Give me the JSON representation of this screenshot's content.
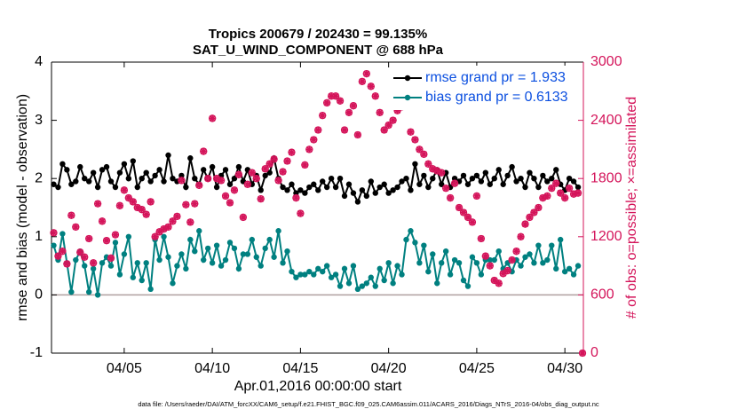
{
  "chart_data": {
    "type": "line",
    "title": "Tropics 200679 / 202430 = 99.135%",
    "subtitle": "SAT_U_WIND_COMPONENT @ 688 hPa",
    "x_label": "Apr.01,2016 00:00:00 start",
    "y_label": "rmse and bias (model - observation)",
    "y2_label": "# of obs: o=possible; ×=assimilated",
    "footnote": "data file: /Users/raeder/DAI/ATM_forcXX/CAM6_setup/f.e21.FHIST_BGC.f09_025.CAM6assim.011/ACARS_2016/Diags_NTrS_2016-04/obs_diag_output.nc",
    "xlim": [
      -0.125,
      30.05
    ],
    "ylim": [
      -1,
      4
    ],
    "y2lim": [
      0,
      3000
    ],
    "xticks": [
      {
        "value": 4,
        "label": "04/05"
      },
      {
        "value": 9,
        "label": "04/10"
      },
      {
        "value": 14,
        "label": "04/15"
      },
      {
        "value": 19,
        "label": "04/20"
      },
      {
        "value": 24,
        "label": "04/25"
      },
      {
        "value": 29,
        "label": "04/30"
      }
    ],
    "yticks": [
      -1,
      0,
      1,
      2,
      3,
      4
    ],
    "y2ticks": [
      0,
      600,
      1200,
      1800,
      2400,
      3000
    ],
    "zero_line_color": "#b0a0a0",
    "y2_color": "#d4145a",
    "legend_position": "upper right",
    "legend_text_color": "#0b4fe0",
    "x": [
      0,
      0.25,
      0.5,
      0.75,
      1,
      1.25,
      1.5,
      1.75,
      2,
      2.25,
      2.5,
      2.75,
      3,
      3.25,
      3.5,
      3.75,
      4,
      4.25,
      4.5,
      4.75,
      5,
      5.25,
      5.5,
      5.75,
      6,
      6.25,
      6.5,
      6.75,
      7,
      7.25,
      7.5,
      7.75,
      8,
      8.25,
      8.5,
      8.75,
      9,
      9.25,
      9.5,
      9.75,
      10,
      10.25,
      10.5,
      10.75,
      11,
      11.25,
      11.5,
      11.75,
      12,
      12.25,
      12.5,
      12.75,
      13,
      13.25,
      13.5,
      13.75,
      14,
      14.25,
      14.5,
      14.75,
      15,
      15.25,
      15.5,
      15.75,
      16,
      16.25,
      16.5,
      16.75,
      17,
      17.25,
      17.5,
      17.75,
      18,
      18.25,
      18.5,
      18.75,
      19,
      19.25,
      19.5,
      19.75,
      20,
      20.25,
      20.5,
      20.75,
      21,
      21.25,
      21.5,
      21.75,
      22,
      22.25,
      22.5,
      22.75,
      23,
      23.25,
      23.5,
      23.75,
      24,
      24.25,
      24.5,
      24.75,
      25,
      25.25,
      25.5,
      25.75,
      26,
      26.25,
      26.5,
      26.75,
      27,
      27.25,
      27.5,
      27.75,
      28,
      28.25,
      28.5,
      28.75,
      29,
      29.25,
      29.5,
      29.75,
      30
    ],
    "series": [
      {
        "name": "rmse grand pr = 1.933",
        "color": "#000000",
        "axis": "y",
        "marker": "dot",
        "line": true,
        "values": [
          1.9,
          1.85,
          2.25,
          2.15,
          1.9,
          1.95,
          2.2,
          2.0,
          1.95,
          2.1,
          1.85,
          2.15,
          2.2,
          1.95,
          1.85,
          2.1,
          2.25,
          2.0,
          2.3,
          1.85,
          2.0,
          2.1,
          1.95,
          2.05,
          2.15,
          1.95,
          2.4,
          2.0,
          1.95,
          2.05,
          1.85,
          2.35,
          2.0,
          1.9,
          2.15,
          2.0,
          2.2,
          1.85,
          2.05,
          2.15,
          1.9,
          2.0,
          2.2,
          1.95,
          2.15,
          1.9,
          2.05,
          1.8,
          2.05,
          2.1,
          2.35,
          2.0,
          1.85,
          1.8,
          1.9,
          1.75,
          1.8,
          1.75,
          1.85,
          1.9,
          1.8,
          1.95,
          1.85,
          2.0,
          1.85,
          2.0,
          1.7,
          1.9,
          1.75,
          1.6,
          1.8,
          1.7,
          1.95,
          1.75,
          1.85,
          1.9,
          1.75,
          1.8,
          1.85,
          1.95,
          2.0,
          1.8,
          2.25,
          1.9,
          2.05,
          1.85,
          2.0,
          2.15,
          1.9,
          2.1,
          1.85,
          2.0,
          1.95,
          2.05,
          1.9,
          2.0,
          2.05,
          1.95,
          2.1,
          1.9,
          2.0,
          2.15,
          1.9,
          2.05,
          2.2,
          1.95,
          2.0,
          1.85,
          2.1,
          2.0,
          1.85,
          2.05,
          1.95,
          2.0,
          2.15,
          1.9,
          1.8,
          2.0,
          1.95,
          1.85,
          null
        ]
      },
      {
        "name": "bias grand pr = 0.6133",
        "color": "#008080",
        "axis": "y",
        "marker": "dot",
        "line": true,
        "values": [
          0.85,
          0.6,
          1.05,
          0.55,
          0.05,
          0.6,
          0.75,
          0.5,
          0.05,
          0.45,
          0.0,
          0.55,
          0.65,
          0.5,
          0.9,
          0.35,
          0.7,
          1.0,
          0.3,
          0.55,
          0.25,
          0.55,
          0.1,
          0.95,
          0.6,
          1.0,
          0.65,
          0.2,
          0.5,
          0.7,
          0.45,
          0.95,
          0.75,
          1.1,
          0.6,
          0.8,
          0.55,
          0.85,
          0.5,
          0.6,
          0.9,
          0.8,
          0.45,
          0.7,
          0.7,
          0.95,
          0.65,
          0.5,
          0.8,
          0.95,
          0.65,
          1.1,
          0.55,
          0.75,
          0.4,
          0.3,
          0.35,
          0.35,
          0.4,
          0.35,
          0.45,
          0.4,
          0.5,
          0.3,
          0.35,
          0.15,
          0.45,
          0.2,
          0.5,
          0.1,
          0.15,
          0.2,
          0.3,
          0.15,
          0.45,
          0.25,
          0.55,
          0.2,
          0.5,
          0.35,
          0.95,
          1.1,
          0.9,
          0.55,
          0.85,
          0.4,
          0.7,
          0.2,
          0.55,
          0.75,
          0.35,
          0.6,
          0.55,
          0.25,
          0.15,
          0.65,
          0.55,
          0.35,
          0.6,
          0.6,
          0.6,
          0.75,
          0.45,
          0.55,
          0.4,
          0.6,
          0.5,
          0.65,
          0.7,
          0.55,
          0.85,
          0.55,
          0.6,
          0.85,
          0.45,
          0.95,
          0.4,
          0.45,
          0.35,
          0.5,
          null
        ]
      },
      {
        "color": "#d4145a",
        "axis": "y2",
        "marker": "circle",
        "line": false,
        "values": [
          1240,
          1000,
          1050,
          920,
          1420,
          1300,
          1040,
          990,
          1180,
          930,
          1540,
          1360,
          1160,
          980,
          1220,
          1520,
          1680,
          1600,
          1560,
          1500,
          1480,
          1430,
          1560,
          1200,
          1250,
          1280,
          1300,
          1360,
          1410,
          1780,
          1530,
          1350,
          1540,
          1730,
          2080,
          1800,
          2420,
          1800,
          1780,
          1620,
          1550,
          1680,
          1840,
          1400,
          1740,
          1860,
          1800,
          1590,
          1900,
          1950,
          2000,
          1780,
          1870,
          1980,
          2070,
          1600,
          1440,
          1940,
          2100,
          2200,
          2300,
          2450,
          2580,
          2650,
          2650,
          2600,
          2300,
          2480,
          2550,
          2250,
          2800,
          2880,
          2750,
          2650,
          2480,
          2300,
          2350,
          2400,
          2500,
          2540,
          2600,
          2280,
          2200,
          2100,
          2050,
          1950,
          1900,
          1880,
          1860,
          1700,
          1600,
          1750,
          1500,
          1450,
          1400,
          1350,
          1620,
          1180,
          1000,
          900,
          750,
          720,
          820,
          850,
          960,
          1050,
          1200,
          1330,
          1400,
          1450,
          1500,
          1600,
          1620,
          1700,
          1750,
          1650,
          1600,
          1700,
          1640,
          1650,
          0
        ]
      },
      {
        "color": "#d4145a",
        "axis": "y2",
        "marker": "star",
        "line": false,
        "values": [
          1240,
          1000,
          1050,
          920,
          1420,
          1300,
          1040,
          990,
          1180,
          930,
          1540,
          1360,
          1160,
          980,
          1220,
          1520,
          1680,
          1600,
          1560,
          1500,
          1480,
          1430,
          1560,
          1200,
          1250,
          1280,
          1300,
          1360,
          1410,
          1780,
          1530,
          1350,
          1540,
          1730,
          2080,
          1800,
          2420,
          1800,
          1780,
          1620,
          1550,
          1680,
          1840,
          1400,
          1740,
          1860,
          1800,
          1590,
          1900,
          1950,
          2000,
          1780,
          1870,
          1980,
          2070,
          1600,
          1440,
          1940,
          2100,
          2200,
          2300,
          2450,
          2580,
          2650,
          2650,
          2600,
          2300,
          2480,
          2550,
          2250,
          2800,
          2880,
          2750,
          2650,
          2480,
          2300,
          2350,
          2400,
          2500,
          2540,
          2600,
          2280,
          2200,
          2100,
          2050,
          1950,
          1900,
          1880,
          1860,
          1700,
          1600,
          1750,
          1500,
          1450,
          1400,
          1350,
          1620,
          1180,
          1000,
          900,
          750,
          720,
          820,
          850,
          960,
          1050,
          1200,
          1330,
          1400,
          1450,
          1500,
          1600,
          1620,
          1700,
          1750,
          1650,
          1600,
          1700,
          1640,
          1650,
          0
        ]
      }
    ]
  }
}
